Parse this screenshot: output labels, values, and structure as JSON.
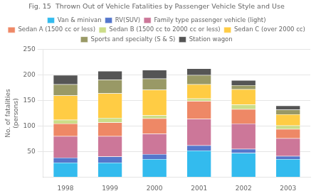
{
  "chart_data": {
    "type": "bar",
    "title": "Fig. 15  Thrown Out of Vehicle Fatalities by Passenger Vehicle Style and Use",
    "ylabel": "No. of fatalities\n(persons)",
    "categories": [
      "1998",
      "1999",
      "2000",
      "2001",
      "2002",
      "2003"
    ],
    "series": [
      {
        "name": "Van & minivan",
        "color": "#33BBEE",
        "values": [
          28,
          28,
          35,
          52,
          47,
          35
        ]
      },
      {
        "name": "RV(SUV)",
        "color": "#5577CC",
        "values": [
          10,
          12,
          10,
          10,
          8,
          6
        ]
      },
      {
        "name": "Family type passenger vehicle (light)",
        "color": "#CC7799",
        "values": [
          42,
          40,
          40,
          52,
          50,
          35
        ]
      },
      {
        "name": "Sedan A (1500 cc or less)",
        "color": "#EE8866",
        "values": [
          25,
          27,
          30,
          35,
          28,
          18
        ]
      },
      {
        "name": "Sedan B (1500 cc to 2000 cc or less)",
        "color": "#CCDD88",
        "values": [
          7,
          9,
          6,
          5,
          9,
          7
        ]
      },
      {
        "name": "Sedan C (over 2000 cc)",
        "color": "#FFCC44",
        "values": [
          48,
          48,
          50,
          28,
          30,
          22
        ]
      },
      {
        "name": "Sports and specialty (S & S)",
        "color": "#999966",
        "values": [
          22,
          27,
          22,
          18,
          8,
          9
        ]
      },
      {
        "name": "Station wagon",
        "color": "#555555",
        "values": [
          18,
          17,
          17,
          13,
          10,
          8
        ]
      }
    ],
    "stacked": true,
    "ylim": [
      0,
      250
    ],
    "yticks": [
      50,
      100,
      150,
      200,
      250
    ],
    "grid": true,
    "legend": "top"
  }
}
